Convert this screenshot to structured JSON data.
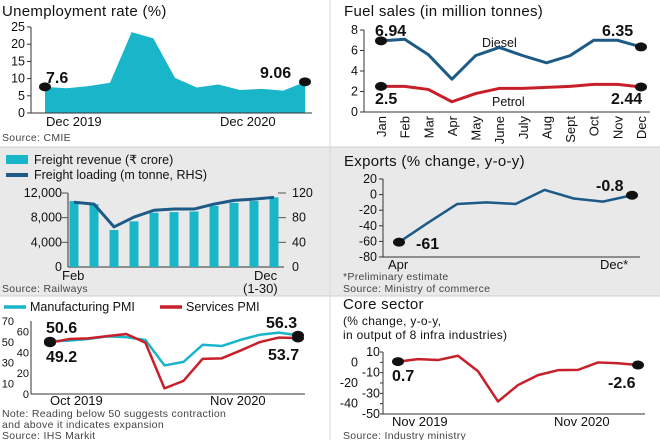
{
  "colors": {
    "teal": "#19b5c8",
    "navy": "#1d5a86",
    "red": "#c8202a",
    "marker": "#111111",
    "panel_bg": "#e9e9e9"
  },
  "chart_data": [
    {
      "type": "area",
      "title": "Unemployment rate (%)",
      "x_labels": [
        "Dec 2019",
        "Dec 2020"
      ],
      "y_ticks": [
        "0",
        "5",
        "10",
        "15",
        "20",
        "25"
      ],
      "ylim": [
        0,
        25
      ],
      "series": [
        {
          "values": [
            7.6,
            7.2,
            7.8,
            8.8,
            23.5,
            21.7,
            10.2,
            7.4,
            8.3,
            6.7,
            7.0,
            6.5,
            9.06
          ]
        }
      ],
      "annotations": [
        "7.6",
        "9.06"
      ],
      "source": "Source: CMIE"
    },
    {
      "type": "line",
      "title": "Fuel sales (in million tonnes)",
      "categories": [
        "Jan",
        "Feb",
        "Mar",
        "Apr",
        "May",
        "June",
        "July",
        "Aug",
        "Sept",
        "Oct",
        "Nov",
        "Dec"
      ],
      "y_ticks": [
        "0",
        "2",
        "4",
        "6",
        "8"
      ],
      "ylim": [
        0,
        8
      ],
      "series": [
        {
          "name": "Diesel",
          "values": [
            6.94,
            7.1,
            5.6,
            3.2,
            5.5,
            6.3,
            5.5,
            4.8,
            5.5,
            7.0,
            7.0,
            6.35
          ]
        },
        {
          "name": "Petrol",
          "values": [
            2.5,
            2.5,
            2.2,
            1.0,
            1.8,
            2.3,
            2.3,
            2.4,
            2.5,
            2.7,
            2.7,
            2.44
          ]
        }
      ],
      "annotations": [
        "6.94",
        "6.35",
        "2.5",
        "2.44"
      ]
    },
    {
      "type": "bar",
      "legend": [
        "Freight revenue (₹ crore)",
        "Freight loading (m tonne, RHS)"
      ],
      "x_labels": [
        "Feb",
        "Dec",
        "(1-30)"
      ],
      "y_ticks_left": [
        "0",
        "4,000",
        "8,000",
        "12,000"
      ],
      "y_ticks_right": [
        "0",
        "40",
        "80",
        "120"
      ],
      "ylim_left": [
        0,
        12000
      ],
      "ylim_right": [
        0,
        120
      ],
      "series": [
        {
          "name": "Freight revenue (₹ crore)",
          "values": [
            10700,
            10200,
            6000,
            7400,
            8800,
            8900,
            9000,
            9900,
            10400,
            10700,
            11300
          ]
        },
        {
          "name": "Freight loading (m tonne, RHS)",
          "values": [
            105,
            102,
            65,
            81,
            92,
            94,
            94,
            102,
            108,
            110,
            113
          ]
        }
      ],
      "source": "Source: Railways"
    },
    {
      "type": "line",
      "title": "Exports (% change, y-o-y)",
      "x_labels": [
        "Apr",
        "Dec*"
      ],
      "y_ticks": [
        "-80",
        "-60",
        "-40",
        "-20",
        "0",
        "20"
      ],
      "ylim": [
        -80,
        20
      ],
      "series": [
        {
          "values": [
            -61,
            -36,
            -12,
            -10,
            -12,
            6,
            -5,
            -9,
            -0.8
          ]
        }
      ],
      "annotations": [
        "-61",
        "-0.8"
      ],
      "footnote": "*Preliminary estimate",
      "source": "Source: Ministry of commerce"
    },
    {
      "type": "line",
      "legend": [
        "Manufacturing PMI",
        "Services PMI"
      ],
      "x_labels": [
        "Oct 2019",
        "Nov 2020"
      ],
      "y_ticks": [
        "0",
        "10",
        "20",
        "30",
        "40",
        "50",
        "60",
        "70"
      ],
      "ylim": [
        0,
        70
      ],
      "series": [
        {
          "name": "Manufacturing PMI",
          "values": [
            50.6,
            51.2,
            52.7,
            55.3,
            54.5,
            51.8,
            27.4,
            30.8,
            47.2,
            46.0,
            52.0,
            56.8,
            58.9,
            56.3
          ]
        },
        {
          "name": "Services PMI",
          "values": [
            49.2,
            52.7,
            53.3,
            55.5,
            57.5,
            49.3,
            5.4,
            12.6,
            33.7,
            34.2,
            41.8,
            49.8,
            54.1,
            53.7
          ]
        }
      ],
      "annotations": [
        "50.6",
        "49.2",
        "56.3",
        "53.7"
      ],
      "note": [
        "Note: Reading below 50 suggests contraction",
        "and above it indicates expansion"
      ],
      "source": "Source: IHS Markit"
    },
    {
      "type": "line",
      "title": "Core sector",
      "subtitle": [
        "(% change, y-o-y,",
        "in output of 8 infra industries)"
      ],
      "x_labels": [
        "Nov 2019",
        "Nov 2020"
      ],
      "y_ticks": [
        "-50",
        "-40",
        "-30",
        "-20",
        "-10",
        "0",
        "10"
      ],
      "ylim": [
        -50,
        10
      ],
      "series": [
        {
          "values": [
            0.7,
            3.1,
            2.2,
            6.4,
            -8.6,
            -37.9,
            -22.0,
            -12.4,
            -7.6,
            -7.3,
            -0.1,
            -0.9,
            -2.6
          ]
        }
      ],
      "annotations": [
        "0.7",
        "-2.6"
      ],
      "source": "Source: Industry ministry"
    }
  ]
}
